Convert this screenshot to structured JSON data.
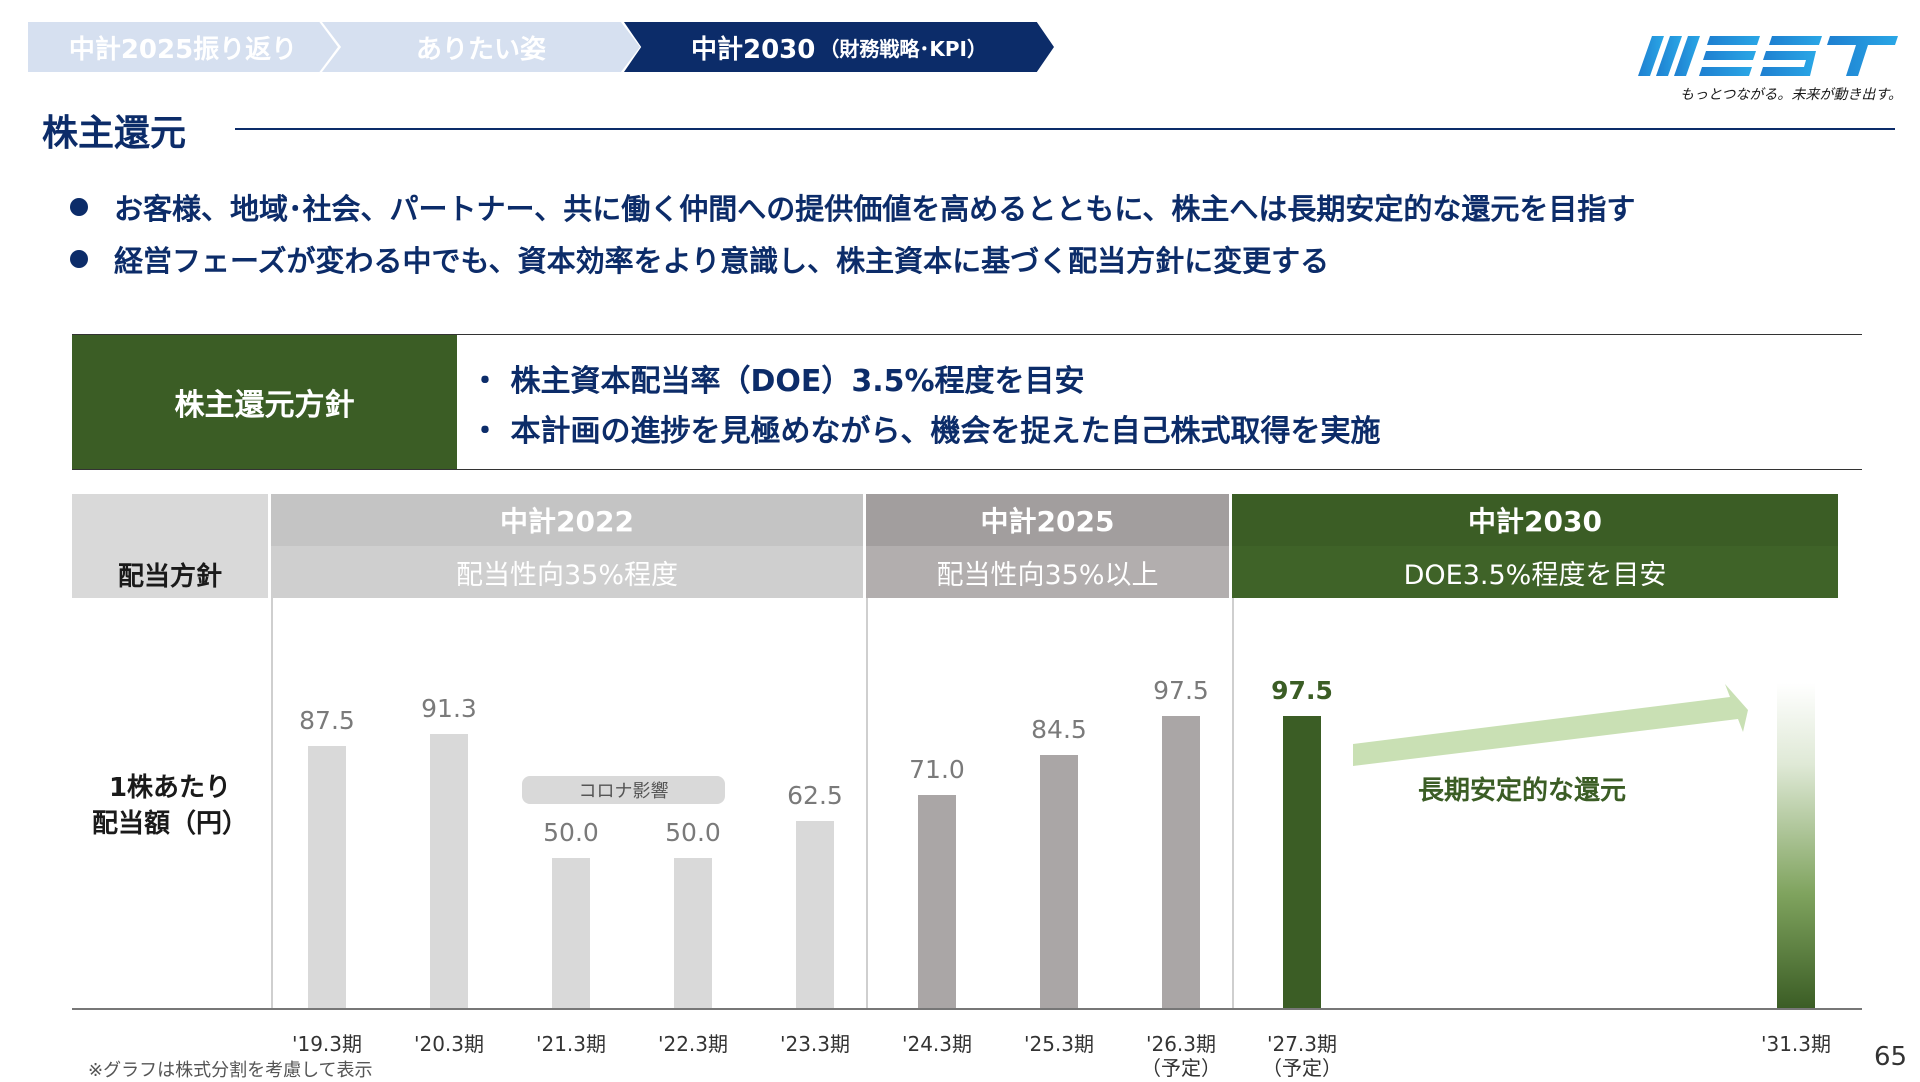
{
  "breadcrumb": {
    "items": [
      {
        "label": "中計2025振り返り"
      },
      {
        "label": "ありたい姿"
      },
      {
        "label": "中計2030",
        "sub": "（財務戦略･KPI）"
      }
    ]
  },
  "logo": {
    "text": "WEST",
    "tagline": "もっとつながる。未来が動き出す。"
  },
  "page_title": "株主還元",
  "bullets": [
    "お客様、地域･社会、パートナー、共に働く仲間への提供価値を高めるとともに、株主へは長期安定的な還元を目指す",
    "経営フェーズが変わる中でも、資本効率をより意識し、株主資本に基づく配当方針に変更する"
  ],
  "policy": {
    "label": "株主還元方針",
    "lines": [
      "・ 株主資本配当率（DOE）3.5%程度を目安",
      "・ 本計画の進捗を見極めながら、機会を捉えた自己株式取得を実施"
    ]
  },
  "table": {
    "row_label": "配当方針",
    "periods": [
      {
        "name": "中計2022",
        "policy": "配当性向35%程度"
      },
      {
        "name": "中計2025",
        "policy": "配当性向35%以上"
      },
      {
        "name": "中計2030",
        "policy": "DOE3.5%程度を目安"
      }
    ]
  },
  "colors": {
    "navy": "#0c2c69",
    "green": "#3b5d25",
    "light_gray": "#d9d9d9",
    "mid_gray": "#aaa6a6",
    "arrow": "#c9e0b4"
  },
  "chart_data": {
    "type": "bar",
    "ylabel": "1株あたり\n配当額（円）",
    "categories": [
      "'19.3期",
      "'20.3期",
      "'21.3期",
      "'22.3期",
      "'23.3期",
      "'24.3期",
      "'25.3期",
      "'26.3期",
      "'27.3期",
      "'31.3期"
    ],
    "category_notes": [
      "",
      "",
      "",
      "",
      "",
      "",
      "",
      "（予定）",
      "（予定）",
      ""
    ],
    "values": [
      87.5,
      91.3,
      50.0,
      50.0,
      62.5,
      71.0,
      84.5,
      97.5,
      97.5,
      null
    ],
    "value_labels": [
      "87.5",
      "91.3",
      "50.0",
      "50.0",
      "62.5",
      "71.0",
      "84.5",
      "97.5",
      "97.5",
      ""
    ],
    "groups": [
      "中計2022",
      "中計2022",
      "中計2022",
      "中計2022",
      "中計2022",
      "中計2025",
      "中計2025",
      "中計2025",
      "中計2030",
      "中計2030"
    ],
    "annotations": [
      {
        "text": "コロナ影響",
        "applies_to": [
          "'21.3期",
          "'22.3期"
        ]
      },
      {
        "text": "長期安定的な還元",
        "applies_to": [
          "'27.3期",
          "'31.3期"
        ]
      }
    ],
    "ylim": [
      0,
      100
    ],
    "grid": false
  },
  "footnote": "※グラフは株式分割を考慮して表示",
  "page_number": "65"
}
